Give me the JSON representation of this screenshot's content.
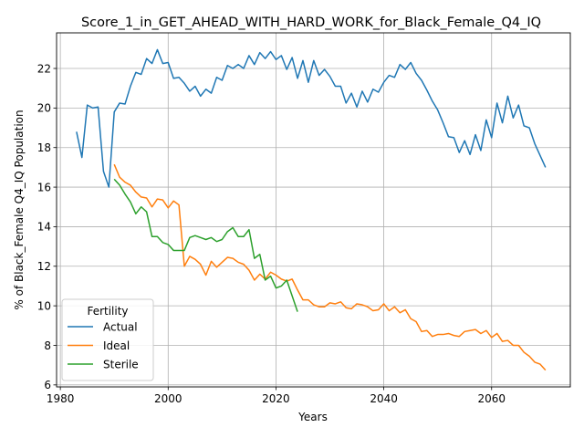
{
  "chart_data": {
    "type": "line",
    "title": "Score_1_in_GET_AHEAD_WITH_HARD_WORK_for_Black_Female_Q4_IQ",
    "xlabel": "Years",
    "ylabel": "% of Black_Female Q4_IQ Population",
    "xlim": [
      1979.3,
      1974.6
    ],
    "ylim": [
      5.9,
      23.8
    ],
    "xticks": [
      1980,
      2000,
      2020,
      2040,
      2060
    ],
    "yticks": [
      6,
      8,
      10,
      12,
      14,
      16,
      18,
      20,
      22
    ],
    "grid": true,
    "legend": {
      "title": "Fertility",
      "placement": "lower-left"
    },
    "series": [
      {
        "name": "Actual",
        "color": "#1f77b4",
        "x": [
          1983,
          1984,
          1985,
          1986,
          1987,
          1988,
          1989,
          1990,
          1991,
          1992,
          1993,
          1994,
          1995,
          1996,
          1997,
          1998,
          1999,
          2000,
          2001,
          2002,
          2003,
          2004,
          2005,
          2006,
          2007,
          2008,
          2009,
          2010,
          2011,
          2012,
          2013,
          2014,
          2015,
          2016,
          2017,
          2018,
          2019,
          2020,
          2021,
          2022,
          2023,
          2024,
          2025,
          2026,
          2027,
          2028,
          2029,
          2030,
          2031,
          2032,
          2033,
          2034,
          2035,
          2036,
          2037,
          2038,
          2039,
          2040,
          2041,
          2042,
          2043,
          2044,
          2045,
          2046,
          2047,
          2048,
          2049,
          2050,
          2051,
          2052,
          2053,
          2054,
          2055,
          2056,
          2057,
          2058,
          2059,
          2060,
          2061,
          2062,
          2063,
          2064,
          2065,
          2066,
          2067,
          2068,
          2069,
          2070
        ],
        "values": [
          18.8,
          17.5,
          20.15,
          20.0,
          20.05,
          16.8,
          16.0,
          19.8,
          20.25,
          20.2,
          21.1,
          21.8,
          21.7,
          22.5,
          22.25,
          22.95,
          22.25,
          22.3,
          21.5,
          21.55,
          21.25,
          20.85,
          21.1,
          20.6,
          20.95,
          20.75,
          21.55,
          21.4,
          22.15,
          22.0,
          22.2,
          22.0,
          22.65,
          22.2,
          22.8,
          22.5,
          22.85,
          22.45,
          22.65,
          21.95,
          22.55,
          21.5,
          22.4,
          21.3,
          22.4,
          21.65,
          21.95,
          21.6,
          21.1,
          21.1,
          20.25,
          20.75,
          20.05,
          20.85,
          20.3,
          20.95,
          20.8,
          21.3,
          21.65,
          21.55,
          22.2,
          21.95,
          22.3,
          21.75,
          21.4,
          20.9,
          20.35,
          19.9,
          19.25,
          18.55,
          18.5,
          17.75,
          18.35,
          17.65,
          18.65,
          17.85,
          19.4,
          18.5,
          20.25,
          19.25,
          20.6,
          19.5,
          20.15,
          19.1,
          19.0,
          18.2,
          17.6,
          17.0
        ]
      },
      {
        "name": "Ideal",
        "color": "#ff7f0e",
        "x": [
          1990,
          1991,
          1992,
          1993,
          1994,
          1995,
          1996,
          1997,
          1998,
          1999,
          2000,
          2001,
          2002,
          2003,
          2004,
          2005,
          2006,
          2007,
          2008,
          2009,
          2010,
          2011,
          2012,
          2013,
          2014,
          2015,
          2016,
          2017,
          2018,
          2019,
          2020,
          2021,
          2022,
          2023,
          2024,
          2025,
          2026,
          2027,
          2028,
          2029,
          2030,
          2031,
          2032,
          2033,
          2034,
          2035,
          2036,
          2037,
          2038,
          2039,
          2040,
          2041,
          2042,
          2043,
          2044,
          2045,
          2046,
          2047,
          2048,
          2049,
          2050,
          2051,
          2052,
          2053,
          2054,
          2055,
          2056,
          2057,
          2058,
          2059,
          2060,
          2061,
          2062,
          2063,
          2064,
          2065,
          2066,
          2067,
          2068,
          2069,
          2070
        ],
        "values": [
          17.15,
          16.5,
          16.25,
          16.1,
          15.75,
          15.5,
          15.45,
          15.0,
          15.4,
          15.35,
          14.95,
          15.3,
          15.1,
          12.0,
          12.5,
          12.35,
          12.1,
          11.55,
          12.25,
          11.95,
          12.2,
          12.45,
          12.4,
          12.2,
          12.1,
          11.8,
          11.3,
          11.6,
          11.35,
          11.7,
          11.55,
          11.35,
          11.25,
          11.35,
          10.8,
          10.3,
          10.3,
          10.05,
          9.95,
          9.95,
          10.15,
          10.1,
          10.2,
          9.9,
          9.85,
          10.1,
          10.05,
          9.95,
          9.75,
          9.8,
          10.1,
          9.75,
          9.95,
          9.65,
          9.8,
          9.35,
          9.2,
          8.7,
          8.75,
          8.45,
          8.55,
          8.55,
          8.6,
          8.5,
          8.45,
          8.7,
          8.75,
          8.8,
          8.6,
          8.75,
          8.4,
          8.6,
          8.2,
          8.25,
          8.0,
          8.0,
          7.65,
          7.45,
          7.15,
          7.05,
          6.75
        ]
      },
      {
        "name": "Sterile",
        "color": "#2ca02c",
        "x": [
          1990,
          1991,
          1992,
          1993,
          1994,
          1995,
          1996,
          1997,
          1998,
          1999,
          2000,
          2001,
          2002,
          2003,
          2004,
          2005,
          2006,
          2007,
          2008,
          2009,
          2010,
          2011,
          2012,
          2013,
          2014,
          2015,
          2016,
          2017,
          2018,
          2019,
          2020,
          2021,
          2022,
          2023,
          2024
        ],
        "values": [
          16.4,
          16.1,
          15.65,
          15.25,
          14.65,
          15.0,
          14.75,
          13.5,
          13.5,
          13.2,
          13.1,
          12.8,
          12.8,
          12.8,
          13.45,
          13.55,
          13.45,
          13.35,
          13.45,
          13.25,
          13.35,
          13.75,
          13.95,
          13.5,
          13.5,
          13.85,
          12.4,
          12.6,
          11.3,
          11.5,
          10.9,
          11.0,
          11.3,
          10.5,
          9.7
        ]
      }
    ]
  }
}
